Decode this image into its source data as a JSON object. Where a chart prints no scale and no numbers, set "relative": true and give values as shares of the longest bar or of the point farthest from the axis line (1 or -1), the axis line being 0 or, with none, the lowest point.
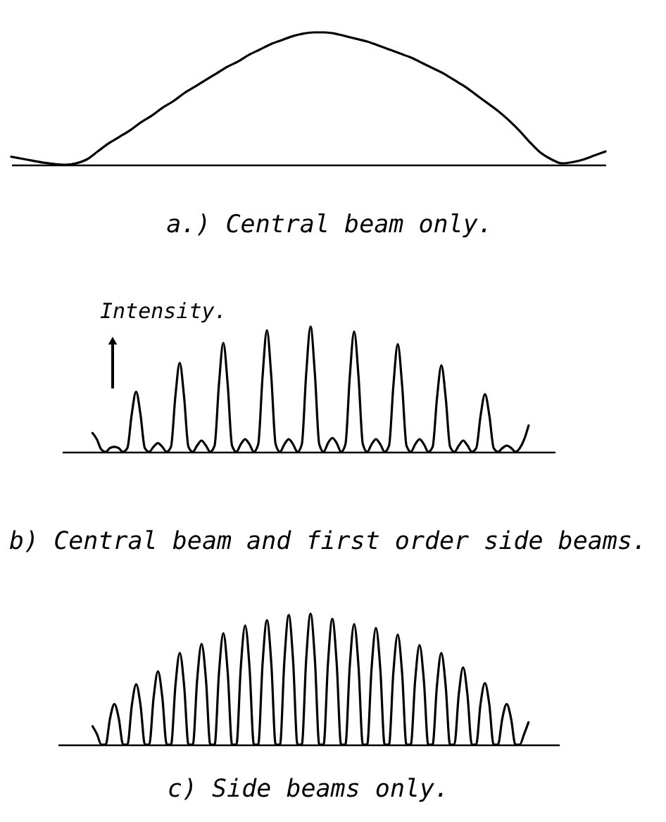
{
  "chart_data": [
    {
      "type": "line",
      "title": "a.) Central beam only.",
      "relative": true,
      "color": "#000000",
      "categories": [
        null,
        null,
        null,
        null,
        null,
        null,
        null,
        null,
        null,
        null,
        null,
        null,
        null,
        null,
        null,
        null,
        null,
        null,
        null,
        null,
        null,
        null,
        null,
        null,
        null,
        null,
        null,
        null,
        null,
        null,
        null,
        null,
        null,
        null,
        null,
        null,
        null,
        null,
        null,
        null,
        null,
        null,
        null,
        null,
        null,
        null,
        null,
        null,
        null,
        null,
        null,
        null,
        null,
        null,
        null,
        null
      ],
      "values": [
        0.06,
        0.045,
        0.03,
        0.015,
        0.005,
        0,
        0.01,
        0.04,
        0.1,
        0.16,
        0.21,
        0.26,
        0.32,
        0.37,
        0.43,
        0.48,
        0.54,
        0.59,
        0.64,
        0.69,
        0.74,
        0.78,
        0.83,
        0.87,
        0.91,
        0.94,
        0.97,
        0.99,
        1.0,
        1.0,
        0.99,
        0.97,
        0.95,
        0.93,
        0.9,
        0.87,
        0.84,
        0.81,
        0.77,
        0.73,
        0.69,
        0.64,
        0.59,
        0.53,
        0.47,
        0.41,
        0.34,
        0.26,
        0.17,
        0.09,
        0.04,
        0.01,
        0.02,
        0.04,
        0.07,
        0.1
      ]
    },
    {
      "type": "line",
      "title": "b) Central beam and first order side beams.",
      "ylabel": "Intensity.",
      "relative": true,
      "color": "#000000",
      "categories": [
        null,
        null,
        null,
        null,
        null,
        null,
        null,
        null,
        null,
        null,
        null,
        null,
        null,
        null,
        null,
        null,
        null,
        null,
        null,
        null,
        null,
        null,
        null,
        null,
        null,
        null,
        null,
        null,
        null,
        null,
        null,
        null,
        null,
        null,
        null,
        null,
        null,
        null,
        null,
        null,
        null,
        null,
        null,
        null,
        null,
        null,
        null,
        null,
        null,
        null,
        null,
        null,
        null,
        null,
        null,
        null,
        null,
        null,
        null,
        null,
        null,
        null,
        null,
        null,
        null,
        null,
        null,
        null,
        null,
        null,
        null,
        null,
        null,
        null,
        null,
        null,
        null,
        null,
        null,
        null,
        null,
        null,
        null,
        null,
        null,
        null,
        null,
        null,
        null,
        null,
        null,
        null,
        null,
        null,
        null,
        null,
        null,
        null,
        null,
        null,
        null,
        null,
        null,
        null,
        null,
        null,
        null,
        null,
        null,
        null,
        null,
        null,
        null,
        null
      ],
      "values": [
        null,
        null,
        null,
        null,
        null,
        null,
        null,
        0.15,
        0.1,
        0.02,
        0,
        0.03,
        0.04,
        0.03,
        0,
        0.03,
        0.3,
        0.48,
        0.3,
        0.03,
        0,
        0.04,
        0.07,
        0.04,
        0,
        0.04,
        0.44,
        0.71,
        0.44,
        0.04,
        0,
        0.05,
        0.09,
        0.05,
        0,
        0.05,
        0.54,
        0.87,
        0.54,
        0.05,
        0,
        0.06,
        0.1,
        0.06,
        0,
        0.06,
        0.6,
        0.97,
        0.6,
        0.06,
        0,
        0.06,
        0.1,
        0.06,
        0,
        0.06,
        0.62,
        1.0,
        0.62,
        0.06,
        0,
        0.07,
        0.11,
        0.07,
        0,
        0.06,
        0.6,
        0.96,
        0.6,
        0.06,
        0,
        0.06,
        0.1,
        0.06,
        0,
        0.05,
        0.53,
        0.86,
        0.53,
        0.05,
        0,
        0.06,
        0.1,
        0.06,
        0,
        0.04,
        0.43,
        0.69,
        0.43,
        0.04,
        0,
        0.05,
        0.09,
        0.05,
        0,
        0.03,
        0.29,
        0.46,
        0.29,
        0.03,
        0,
        0.03,
        0.05,
        0.03,
        0,
        0.03,
        0.1,
        0.21,
        null,
        null,
        null,
        null,
        null,
        null
      ]
    },
    {
      "type": "line",
      "title": "c) Side beams only.",
      "relative": true,
      "color": "#000000",
      "categories": [
        null,
        null,
        null,
        null,
        null,
        null,
        null,
        null,
        null,
        null,
        null,
        null,
        null,
        null,
        null,
        null,
        null,
        null,
        null,
        null,
        null,
        null,
        null,
        null,
        null,
        null,
        null,
        null,
        null,
        null,
        null,
        null,
        null,
        null,
        null,
        null,
        null,
        null,
        null,
        null,
        null,
        null,
        null,
        null,
        null,
        null,
        null,
        null,
        null,
        null,
        null,
        null,
        null,
        null,
        null,
        null,
        null,
        null,
        null,
        null,
        null,
        null,
        null,
        null,
        null,
        null,
        null,
        null,
        null,
        null,
        null,
        null,
        null,
        null,
        null,
        null,
        null,
        null,
        null,
        null,
        null,
        null,
        null,
        null,
        null,
        null,
        null,
        null,
        null,
        null,
        null,
        null,
        null,
        null,
        null,
        null,
        null,
        null,
        null,
        null,
        null,
        null,
        null,
        null,
        null,
        null,
        null,
        null,
        null,
        null,
        null,
        null,
        null,
        null,
        null,
        null
      ],
      "values": [
        null,
        null,
        null,
        null,
        null,
        null,
        null,
        null,
        0.14,
        0.08,
        0,
        0,
        0.2,
        0.31,
        0.2,
        0,
        0,
        0.3,
        0.46,
        0.3,
        0,
        0,
        0.36,
        0.56,
        0.36,
        0,
        0,
        0.45,
        0.7,
        0.45,
        0,
        0,
        0.5,
        0.77,
        0.5,
        0,
        0,
        0.55,
        0.85,
        0.55,
        0,
        0,
        0.59,
        0.91,
        0.59,
        0,
        0,
        0.62,
        0.95,
        0.62,
        0,
        0,
        0.64,
        0.99,
        0.64,
        0,
        0,
        0.65,
        1.0,
        0.65,
        0,
        0,
        0.62,
        0.96,
        0.62,
        0,
        0,
        0.6,
        0.92,
        0.6,
        0,
        0,
        0.58,
        0.89,
        0.58,
        0,
        0,
        0.55,
        0.84,
        0.55,
        0,
        0,
        0.49,
        0.76,
        0.49,
        0,
        0,
        0.45,
        0.7,
        0.45,
        0,
        0,
        0.38,
        0.59,
        0.38,
        0,
        0,
        0.31,
        0.47,
        0.31,
        0,
        0,
        0.2,
        0.31,
        0.2,
        0,
        0,
        0.08,
        0.17,
        null,
        null,
        null,
        null,
        null,
        null,
        null
      ]
    }
  ]
}
